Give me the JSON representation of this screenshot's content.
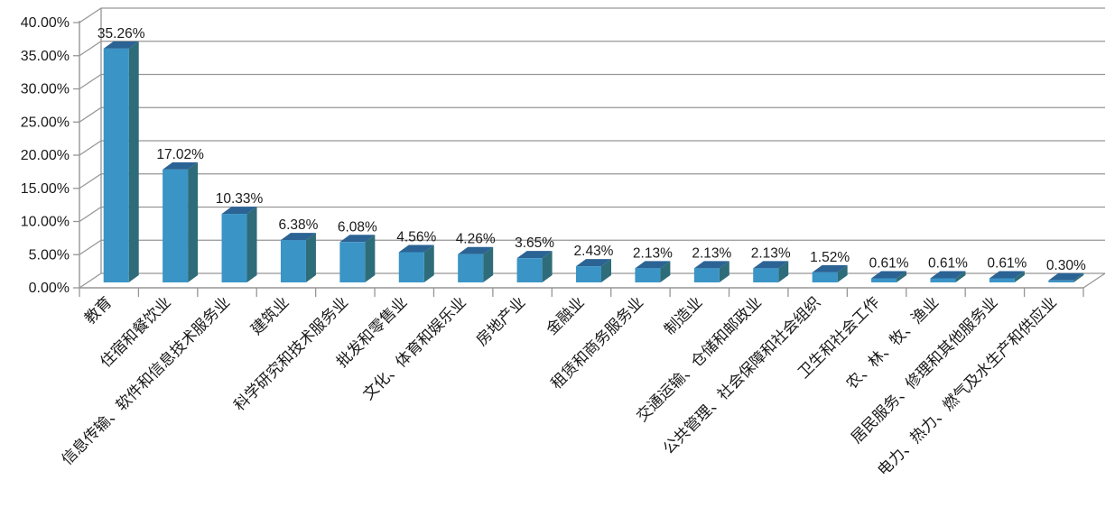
{
  "chart_data": {
    "type": "bar",
    "style": "3d-column",
    "title": "",
    "xlabel": "",
    "ylabel": "",
    "ylim": [
      0,
      40
    ],
    "ytick_step": 5,
    "ytick_labels": [
      "0.00%",
      "5.00%",
      "10.00%",
      "15.00%",
      "20.00%",
      "25.00%",
      "30.00%",
      "35.00%",
      "40.00%"
    ],
    "grid": true,
    "legend": false,
    "x_label_rotation_deg": 45,
    "categories": [
      "教育",
      "住宿和餐饮业",
      "信息传输、软件和信息技术服务业",
      "建筑业",
      "科学研究和技术服务业",
      "批发和零售业",
      "文化、体育和娱乐业",
      "房地产业",
      "金融业",
      "租赁和商务服务业",
      "制造业",
      "交通运输、仓储和邮政业",
      "公共管理、社会保障和社会组织",
      "卫生和社会工作",
      "农、林、牧、渔业",
      "居民服务、修理和其他服务业",
      "电力、热力、燃气及水生产和供应业"
    ],
    "values": [
      35.26,
      17.02,
      10.33,
      6.38,
      6.08,
      4.56,
      4.26,
      3.65,
      2.43,
      2.13,
      2.13,
      2.13,
      1.52,
      0.61,
      0.61,
      0.61,
      0.3
    ],
    "value_labels": [
      "35.26%",
      "17.02%",
      "10.33%",
      "6.38%",
      "6.08%",
      "4.56%",
      "4.26%",
      "3.65%",
      "2.43%",
      "2.13%",
      "2.13%",
      "2.13%",
      "1.52%",
      "0.61%",
      "0.61%",
      "0.61%",
      "0.30%"
    ],
    "colors": {
      "bar_front": "#3A94C6",
      "bar_top": "#2B6394",
      "bar_side": "#2E6C79",
      "gridline": "#969696",
      "axis": "#969696",
      "text": "#1A1A1A",
      "background": "#FFFFFF"
    }
  }
}
